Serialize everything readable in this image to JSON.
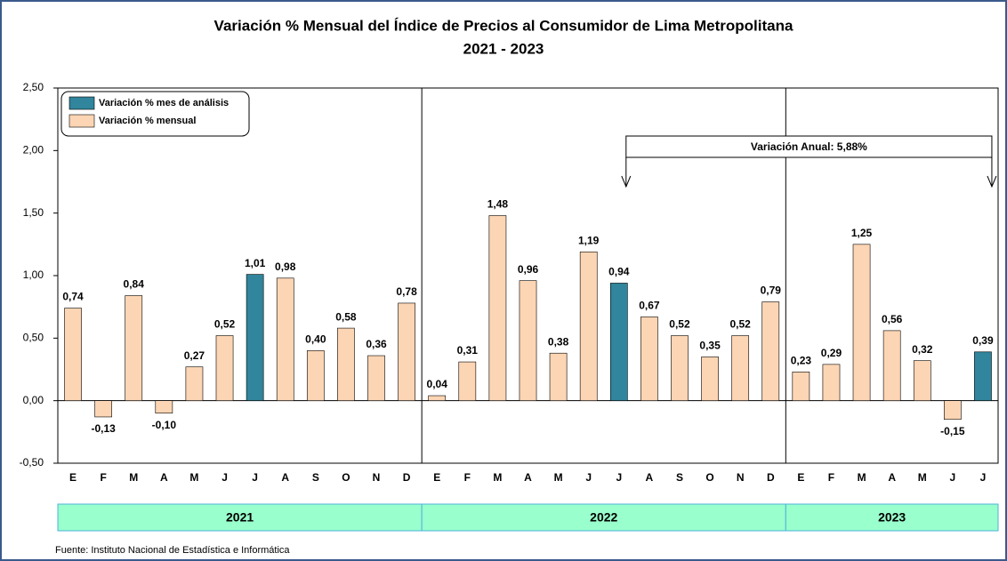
{
  "chart_data": {
    "type": "bar",
    "title": "Variación % Mensual del Índice de Precios al Consumidor de Lima Metropolitana",
    "subtitle": "2021 - 2023",
    "groups": [
      {
        "label": "2021",
        "categories": [
          "E",
          "F",
          "M",
          "A",
          "M",
          "J",
          "J",
          "A",
          "S",
          "O",
          "N",
          "D"
        ]
      },
      {
        "label": "2022",
        "categories": [
          "E",
          "F",
          "M",
          "A",
          "M",
          "J",
          "J",
          "A",
          "S",
          "O",
          "N",
          "D"
        ]
      },
      {
        "label": "2023",
        "categories": [
          "E",
          "F",
          "M",
          "A",
          "M",
          "J",
          "J"
        ]
      }
    ],
    "series": [
      {
        "name": "Variación % mes de análisis",
        "color": "#31859c",
        "values": [
          null,
          null,
          null,
          null,
          null,
          null,
          1.01,
          null,
          null,
          null,
          null,
          null,
          null,
          null,
          null,
          null,
          null,
          null,
          0.94,
          null,
          null,
          null,
          null,
          null,
          null,
          null,
          null,
          null,
          null,
          null,
          0.39
        ],
        "value_labels": [
          null,
          null,
          null,
          null,
          null,
          null,
          "1,01",
          null,
          null,
          null,
          null,
          null,
          null,
          null,
          null,
          null,
          null,
          null,
          "0,94",
          null,
          null,
          null,
          null,
          null,
          null,
          null,
          null,
          null,
          null,
          null,
          "0,39"
        ]
      },
      {
        "name": "Variación % mensual",
        "color": "#fcd5b4",
        "values": [
          0.74,
          -0.13,
          0.84,
          -0.1,
          0.27,
          0.52,
          null,
          0.98,
          0.4,
          0.58,
          0.36,
          0.78,
          0.04,
          0.31,
          1.48,
          0.96,
          0.38,
          1.19,
          null,
          0.67,
          0.52,
          0.35,
          0.52,
          0.79,
          0.23,
          0.29,
          1.25,
          0.56,
          0.32,
          -0.15,
          null
        ],
        "value_labels": [
          "0,74",
          "-0,13",
          "0,84",
          "-0,10",
          "0,27",
          "0,52",
          null,
          "0,98",
          "0,40",
          "0,58",
          "0,36",
          "0,78",
          "0,04",
          "0,31",
          "1,48",
          "0,96",
          "0,38",
          "1,19",
          null,
          "0,67",
          "0,52",
          "0,35",
          "0,52",
          "0,79",
          "0,23",
          "0,29",
          "1,25",
          "0,56",
          "0,32",
          "-0,15",
          null
        ]
      }
    ],
    "ylim": [
      -0.5,
      2.5
    ],
    "yticks": [
      {
        "value": -0.5,
        "label": "-0,50"
      },
      {
        "value": 0,
        "label": "0,00"
      },
      {
        "value": 0.5,
        "label": "0,50"
      },
      {
        "value": 1,
        "label": "1,00"
      },
      {
        "value": 1.5,
        "label": "1,50"
      },
      {
        "value": 2,
        "label": "2,00"
      },
      {
        "value": 2.5,
        "label": "2,50"
      }
    ],
    "annotation": "Variación Anual: 5,88%",
    "source": "Fuente: Instituto Nacional de Estadística e Informática"
  }
}
